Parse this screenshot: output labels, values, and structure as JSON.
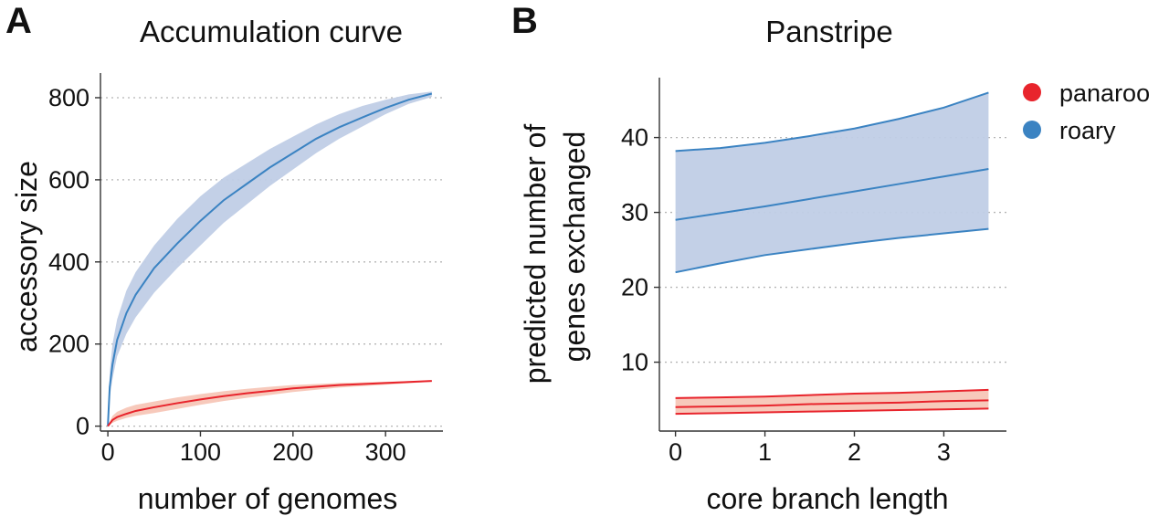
{
  "colors": {
    "panaroo": "#e8242c",
    "panaroo_fill": "#f7c6b7",
    "roary": "#3b83c2",
    "roary_fill": "#c0cde6"
  },
  "legend": {
    "items": [
      {
        "name": "panaroo",
        "color": "#e8242c"
      },
      {
        "name": "roary",
        "color": "#3b83c2"
      }
    ]
  },
  "chart_data": [
    {
      "panel": "A",
      "type": "area",
      "title": "Accumulation curve",
      "xlabel": "number of genomes",
      "ylabel": "accessory size",
      "xlim": [
        -8,
        362
      ],
      "ylim": [
        -12,
        860
      ],
      "xticks": [
        0,
        100,
        200,
        300
      ],
      "yticks": [
        0,
        200,
        400,
        600,
        800
      ],
      "grid": "horizontal dotted",
      "series": [
        {
          "name": "roary",
          "x": [
            0,
            2,
            5,
            10,
            20,
            30,
            50,
            75,
            100,
            125,
            150,
            175,
            200,
            225,
            250,
            275,
            300,
            325,
            350
          ],
          "y": [
            0,
            95,
            150,
            210,
            275,
            320,
            385,
            445,
            500,
            550,
            590,
            630,
            665,
            700,
            728,
            752,
            775,
            795,
            810
          ],
          "lower": [
            0,
            70,
            115,
            170,
            225,
            265,
            325,
            385,
            440,
            495,
            540,
            585,
            625,
            665,
            700,
            730,
            760,
            785,
            802
          ],
          "upper": [
            0,
            130,
            200,
            260,
            330,
            375,
            440,
            505,
            560,
            605,
            640,
            675,
            705,
            735,
            760,
            780,
            795,
            808,
            815
          ]
        },
        {
          "name": "panaroo",
          "x": [
            0,
            5,
            10,
            20,
            30,
            50,
            75,
            100,
            125,
            150,
            175,
            200,
            250,
            300,
            350
          ],
          "y": [
            0,
            15,
            22,
            30,
            37,
            46,
            56,
            65,
            73,
            80,
            86,
            92,
            100,
            105,
            110
          ],
          "lower": [
            0,
            8,
            13,
            20,
            25,
            32,
            42,
            52,
            61,
            69,
            76,
            83,
            94,
            101,
            108
          ],
          "upper": [
            0,
            25,
            35,
            45,
            52,
            60,
            70,
            78,
            85,
            91,
            96,
            100,
            105,
            108,
            111
          ]
        }
      ]
    },
    {
      "panel": "B",
      "type": "line",
      "title": "Panstripe",
      "xlabel": "core branch length",
      "ylabel": [
        "predicted number of",
        "genes exchanged"
      ],
      "xlim": [
        -0.18,
        3.7
      ],
      "ylim": [
        0.8,
        48.0
      ],
      "xticks": [
        0,
        1,
        2,
        3
      ],
      "yticks": [
        10,
        20,
        30,
        40
      ],
      "grid": "horizontal dotted",
      "series": [
        {
          "name": "roary",
          "x": [
            0,
            0.5,
            1,
            1.5,
            2,
            2.5,
            3,
            3.5
          ],
          "y": [
            29.0,
            29.9,
            30.8,
            31.8,
            32.8,
            33.8,
            34.8,
            35.8
          ],
          "lower": [
            22.0,
            23.2,
            24.3,
            25.1,
            25.9,
            26.6,
            27.2,
            27.8
          ],
          "upper": [
            38.2,
            38.6,
            39.3,
            40.2,
            41.2,
            42.5,
            44.0,
            46.0
          ]
        },
        {
          "name": "panaroo",
          "x": [
            0,
            0.5,
            1,
            1.5,
            2,
            2.5,
            3,
            3.5
          ],
          "y": [
            4.0,
            4.1,
            4.2,
            4.4,
            4.5,
            4.6,
            4.8,
            4.9
          ],
          "lower": [
            3.1,
            3.2,
            3.3,
            3.4,
            3.5,
            3.6,
            3.7,
            3.8
          ],
          "upper": [
            5.2,
            5.3,
            5.4,
            5.6,
            5.8,
            5.9,
            6.1,
            6.3
          ]
        }
      ]
    }
  ]
}
